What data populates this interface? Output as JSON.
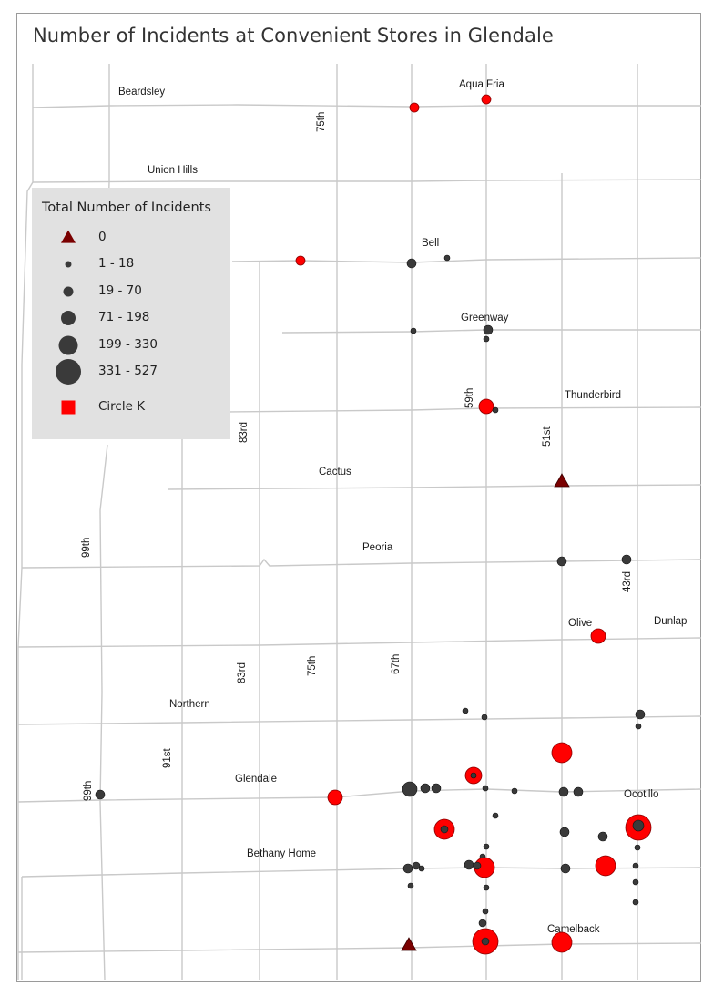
{
  "title": "Number of Incidents at Convenient Stores in Glendale",
  "colors": {
    "road": "#c9c9c9",
    "incident": "#3a3a3a",
    "circle_k": "#ff0000",
    "zero": "#7a0000",
    "legend_bg": "#e1e1e1"
  },
  "street_labels": {
    "beardsley": "Beardsley",
    "aqua_fria": "Aqua Fria",
    "th75_north": "75th",
    "union_hills": "Union Hills",
    "bell": "Bell",
    "greenway": "Greenway",
    "th59": "59th",
    "thunderbird": "Thunderbird",
    "st51": "51st",
    "rd83_north": "83rd",
    "cactus": "Cactus",
    "th99_north": "99th",
    "peoria": "Peoria",
    "rd43": "43rd",
    "olive": "Olive",
    "dunlap": "Dunlap",
    "th67": "67th",
    "rd83_south": "83rd",
    "th75_south": "75th",
    "northern": "Northern",
    "st91": "91st",
    "th99_south": "99th",
    "glendale": "Glendale",
    "ocotillo": "Ocotillo",
    "bethany_home": "Bethany Home",
    "camelback": "Camelback"
  },
  "legend": {
    "title": "Total Number of Incidents",
    "items": [
      {
        "label": "0",
        "symbol": "triangle"
      },
      {
        "label": "1 - 18",
        "symbol": "circle",
        "size": 7
      },
      {
        "label": "19 - 70",
        "symbol": "circle",
        "size": 11
      },
      {
        "label": "71 - 198",
        "symbol": "circle",
        "size": 16
      },
      {
        "label": "199 - 330",
        "symbol": "circle",
        "size": 21
      },
      {
        "label": "331 - 527",
        "symbol": "circle",
        "size": 28
      },
      {
        "label": "Circle K",
        "symbol": "square"
      }
    ]
  }
}
